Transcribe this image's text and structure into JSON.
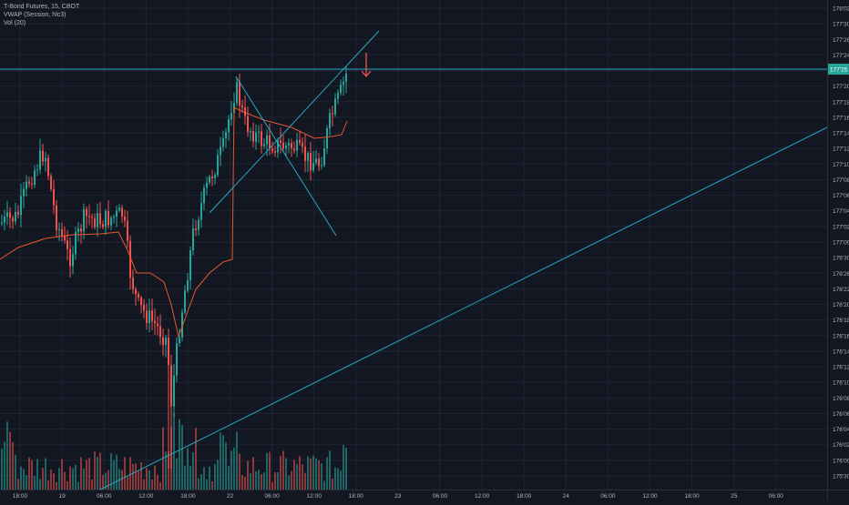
{
  "legend": {
    "symbol_line": "T-Bond Futures, 15, CBOT",
    "vwap_line": "VWAP (Session, hlc3)",
    "volume_line": "Vol (20)"
  },
  "colors": {
    "background": "#131722",
    "grid": "#1f2433",
    "up_candle": "#26a69a",
    "down_candle": "#ef5350",
    "vwap": "#e8562f",
    "trendline": "#2aa6c4",
    "arrow": "#ef5350",
    "axis_text": "#b2b5be",
    "price_tag": "#26a69a"
  },
  "chart_data": {
    "type": "candlestick",
    "y_ticks": [
      "178'02",
      "177'30",
      "177'26",
      "177'24",
      "177'22",
      "177'20",
      "177'18",
      "177'16",
      "177'14",
      "177'12",
      "177'10",
      "177'08",
      "177'06",
      "177'04",
      "177'02",
      "177'00",
      "176'30",
      "176'26",
      "176'22",
      "176'20",
      "176'18",
      "176'16",
      "176'14",
      "176'12",
      "176'10",
      "176'08",
      "176'06",
      "176'04",
      "176'02",
      "176'00",
      "175'30"
    ],
    "x_ticks": [
      "18:00",
      "19",
      "06:00",
      "12:00",
      "18:00",
      "22",
      "06:00",
      "12:00",
      "18:00",
      "23",
      "06:00",
      "12:00",
      "18:00",
      "24",
      "06:00",
      "12:00",
      "18:00",
      "25",
      "06:00"
    ],
    "current_price": "177'25",
    "annotations": [
      "down-arrow above last candle",
      "horizontal line at current price",
      "ascending trendline",
      "rising wedge lines"
    ],
    "grid": true
  }
}
